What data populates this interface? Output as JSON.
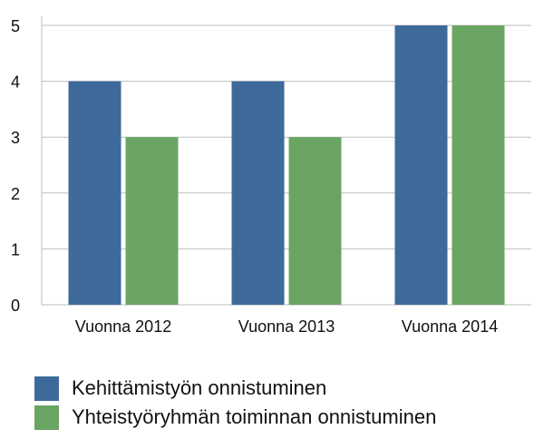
{
  "chart_data": {
    "type": "bar",
    "categories": [
      "Vuonna 2012",
      "Vuonna 2013",
      "Vuonna 2014"
    ],
    "series": [
      {
        "name": "Kehittämistyön onnistuminen",
        "values": [
          4,
          4,
          5
        ],
        "color": "#3d6a9a"
      },
      {
        "name": "Yhteistyöryhmän toiminnan onnistuminen",
        "values": [
          3,
          3,
          5
        ],
        "color": "#6aa563"
      }
    ],
    "ylim": [
      0,
      5
    ],
    "yticks": [
      "0",
      "1",
      "2",
      "3",
      "4",
      "5"
    ],
    "grid": true,
    "legend": "bottom"
  }
}
